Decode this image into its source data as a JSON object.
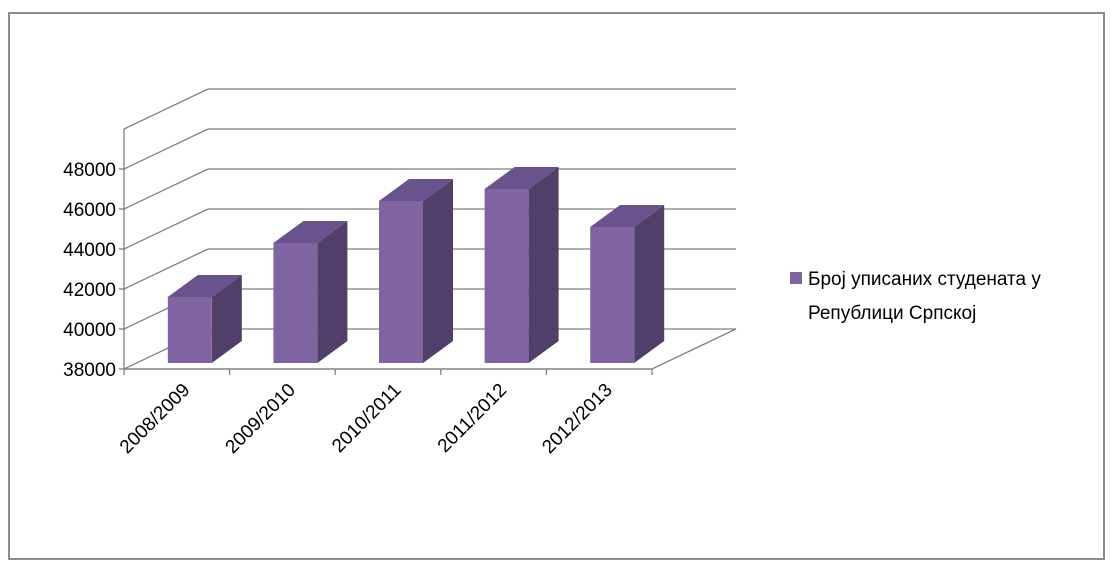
{
  "chart_data": {
    "type": "bar",
    "style": "3d-column",
    "categories": [
      "2008/2009",
      "2009/2010",
      "2010/2011",
      "2011/2012",
      "2012/2013"
    ],
    "series": [
      {
        "name": "Број уписаних студената у Републици Српској",
        "values": [
          41500,
          44200,
          46300,
          46900,
          45000
        ],
        "color": "#8064a2"
      }
    ],
    "title": "",
    "xlabel": "",
    "ylabel": "",
    "ylim": [
      38000,
      48000
    ],
    "yticks": [
      38000,
      40000,
      42000,
      44000,
      46000,
      48000
    ],
    "ytick_labels": [
      "38000",
      "40000",
      "42000",
      "44000",
      "46000",
      "48000"
    ],
    "grid": true,
    "legend_position": "right"
  },
  "legend": {
    "line1": "Број уписаних студената у",
    "line2": "Републици Српској"
  },
  "colors": {
    "bar_front": "#8064a2",
    "bar_side": "#4f3f69",
    "bar_top": "#6a528d",
    "grid": "#7f7f7f",
    "frame": "#8c8c8c"
  }
}
